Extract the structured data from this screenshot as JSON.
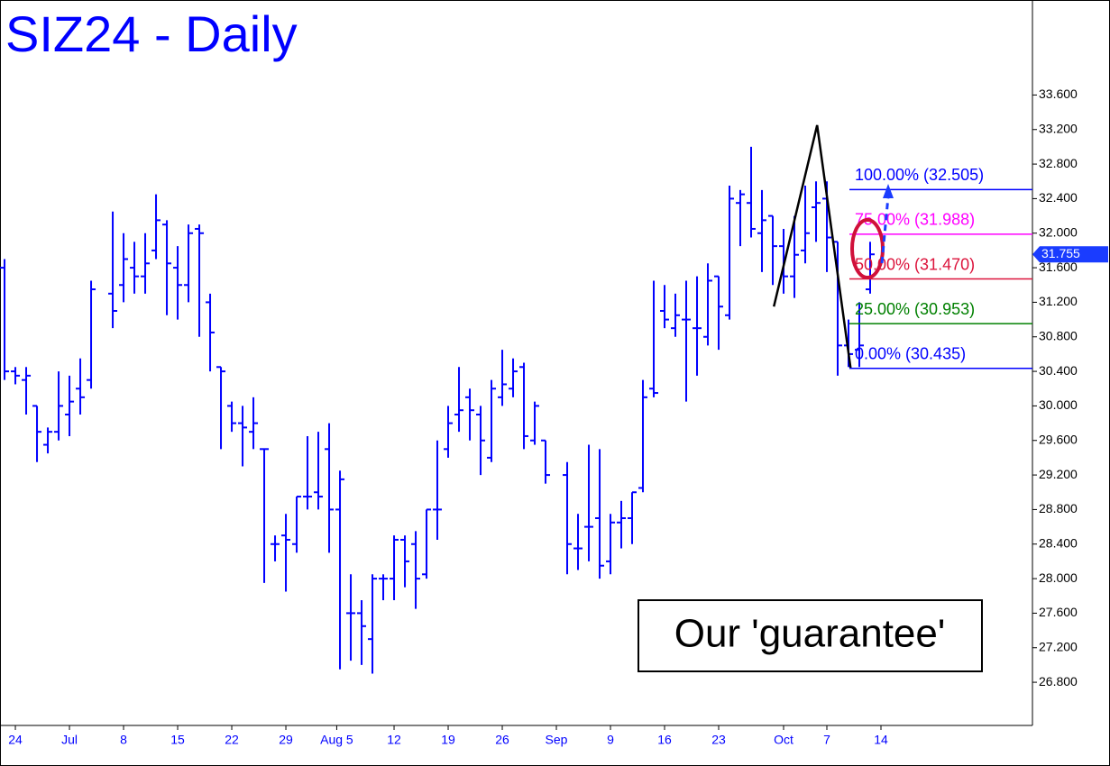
{
  "chart_data": {
    "type": "ohlc",
    "title": "SIZ24 - Daily",
    "color": "#0000ff",
    "x": [
      -1,
      0,
      1,
      2,
      3,
      4,
      5,
      6,
      7,
      9,
      10,
      11,
      12,
      13,
      14,
      15,
      16,
      17,
      18,
      19,
      20,
      21,
      22,
      23,
      24,
      25,
      26,
      27,
      28,
      29,
      30,
      31,
      32,
      33,
      34,
      35,
      36,
      37,
      38,
      39,
      40,
      41,
      42,
      43,
      44,
      45,
      46,
      47,
      48,
      49,
      51,
      52,
      53,
      54,
      55,
      56,
      57,
      58,
      59,
      60,
      61,
      62,
      63,
      64,
      65,
      66,
      67,
      68,
      69,
      70,
      71,
      72,
      73,
      74,
      75,
      76,
      77,
      78,
      79
    ],
    "open": [
      31.6,
      30.4,
      30.3,
      30.0,
      29.55,
      29.7,
      29.9,
      30.2,
      30.3,
      31.3,
      31.4,
      31.6,
      31.5,
      31.8,
      32.1,
      31.6,
      31.4,
      32.05,
      31.2,
      30.45,
      30.0,
      29.8,
      29.7,
      29.5,
      28.4,
      28.5,
      28.4,
      28.95,
      29.0,
      29.5,
      28.8,
      27.6,
      27.6,
      27.3,
      28.0,
      28.0,
      28.45,
      28.4,
      28.05,
      28.8,
      29.5,
      29.9,
      30.1,
      29.9,
      29.4,
      30.1,
      30.2,
      30.45,
      29.6,
      29.6,
      29.2,
      28.35,
      28.6,
      28.7,
      28.2,
      28.65,
      28.7,
      29.05,
      30.2,
      31.1,
      30.9,
      31.0,
      30.9,
      30.8,
      31.5,
      31.05,
      32.35,
      32.35,
      32.0,
      32.2,
      31.85,
      31.5,
      31.8,
      32.3,
      32.4,
      31.9,
      30.7,
      30.65,
      31.35
    ],
    "high": [
      31.7,
      30.45,
      30.45,
      30.0,
      29.75,
      30.4,
      30.35,
      30.55,
      31.45,
      32.25,
      32.0,
      31.9,
      32.0,
      32.45,
      32.15,
      31.85,
      32.1,
      32.1,
      31.3,
      30.45,
      30.05,
      30.0,
      30.1,
      29.5,
      28.5,
      28.75,
      28.95,
      29.65,
      29.7,
      29.8,
      29.25,
      28.05,
      27.75,
      28.05,
      28.05,
      28.5,
      28.5,
      28.55,
      28.8,
      29.6,
      30.0,
      30.45,
      30.2,
      30.0,
      30.3,
      30.65,
      30.55,
      30.5,
      30.05,
      29.6,
      29.35,
      28.75,
      29.55,
      29.5,
      28.75,
      28.9,
      29.0,
      30.3,
      31.45,
      31.4,
      31.3,
      31.45,
      31.5,
      31.65,
      31.5,
      32.55,
      32.5,
      33.0,
      32.5,
      32.2,
      32.05,
      32.2,
      32.55,
      32.6,
      32.6,
      31.9,
      31.0,
      31.2,
      31.9
    ],
    "low": [
      30.3,
      30.25,
      29.9,
      29.35,
      29.45,
      29.6,
      29.65,
      29.9,
      30.2,
      30.9,
      31.2,
      31.3,
      31.3,
      31.7,
      31.05,
      31.0,
      31.2,
      30.8,
      30.4,
      29.5,
      29.7,
      29.3,
      29.5,
      27.95,
      28.2,
      27.85,
      28.3,
      28.8,
      28.8,
      28.3,
      26.95,
      27.05,
      27.0,
      26.9,
      27.75,
      27.75,
      27.9,
      27.65,
      28.0,
      28.45,
      29.4,
      29.7,
      29.6,
      29.2,
      29.35,
      30.0,
      30.1,
      29.5,
      29.55,
      29.1,
      28.05,
      28.1,
      28.2,
      28.0,
      28.05,
      28.35,
      28.4,
      29.0,
      30.1,
      30.9,
      30.8,
      30.05,
      30.35,
      30.7,
      30.65,
      31.0,
      31.85,
      31.95,
      31.55,
      31.4,
      31.3,
      31.25,
      31.65,
      31.9,
      31.55,
      30.35,
      30.45,
      30.45,
      31.3
    ],
    "close": [
      30.4,
      30.35,
      30.35,
      29.7,
      29.7,
      30.0,
      30.05,
      30.1,
      31.35,
      31.1,
      31.7,
      31.5,
      31.65,
      32.15,
      31.65,
      31.4,
      32.0,
      32.0,
      30.85,
      30.4,
      29.8,
      29.75,
      29.8,
      29.5,
      28.4,
      28.45,
      28.95,
      28.95,
      28.95,
      28.8,
      29.15,
      27.6,
      27.45,
      28.0,
      28.0,
      28.45,
      28.2,
      28.0,
      28.8,
      28.8,
      29.8,
      29.95,
      29.95,
      29.6,
      30.2,
      30.25,
      30.4,
      29.65,
      30.0,
      29.2,
      28.4,
      28.35,
      28.6,
      28.15,
      28.65,
      28.7,
      29.0,
      30.1,
      30.15,
      31.0,
      31.05,
      31.0,
      30.9,
      31.45,
      31.15,
      32.4,
      32.45,
      32.05,
      32.15,
      31.85,
      31.5,
      31.75,
      32.0,
      32.35,
      31.95,
      30.7,
      30.6,
      30.7,
      31.755
    ],
    "xlim": [
      -1.42,
      94
    ],
    "xticks": [
      {
        "value": 0,
        "label": "24"
      },
      {
        "value": 5,
        "label": "Jul"
      },
      {
        "value": 10,
        "label": "8"
      },
      {
        "value": 15,
        "label": "15"
      },
      {
        "value": 20,
        "label": "22"
      },
      {
        "value": 25,
        "label": "29"
      },
      {
        "value": 29.7,
        "label": "Aug 5"
      },
      {
        "value": 35,
        "label": "12"
      },
      {
        "value": 40,
        "label": "19"
      },
      {
        "value": 45,
        "label": "26"
      },
      {
        "value": 50,
        "label": "Sep"
      },
      {
        "value": 55,
        "label": "9"
      },
      {
        "value": 60,
        "label": "16"
      },
      {
        "value": 65,
        "label": "23"
      },
      {
        "value": 71,
        "label": "Oct"
      },
      {
        "value": 75,
        "label": "7"
      },
      {
        "value": 80,
        "label": "14"
      }
    ],
    "ylim": [
      26.3,
      34.7
    ],
    "yticks": [
      {
        "value": 26.8,
        "label": "26.800"
      },
      {
        "value": 27.2,
        "label": "27.200"
      },
      {
        "value": 27.6,
        "label": "27.600"
      },
      {
        "value": 28.0,
        "label": "28.000"
      },
      {
        "value": 28.4,
        "label": "28.400"
      },
      {
        "value": 28.8,
        "label": "28.800"
      },
      {
        "value": 29.2,
        "label": "29.200"
      },
      {
        "value": 29.6,
        "label": "29.600"
      },
      {
        "value": 30.0,
        "label": "30.000"
      },
      {
        "value": 30.4,
        "label": "30.400"
      },
      {
        "value": 30.8,
        "label": "30.800"
      },
      {
        "value": 31.2,
        "label": "31.200"
      },
      {
        "value": 31.6,
        "label": "31.600"
      },
      {
        "value": 32.0,
        "label": "32.000"
      },
      {
        "value": 32.4,
        "label": "32.400"
      },
      {
        "value": 32.8,
        "label": "32.800"
      },
      {
        "value": 33.2,
        "label": "33.200"
      },
      {
        "value": 33.6,
        "label": "33.600"
      }
    ],
    "last_price": 31.755,
    "levels": [
      {
        "label": "100.00% (32.505)",
        "value": 32.505,
        "color": "#0000ff"
      },
      {
        "label": "75.00% (31.988)",
        "value": 31.988,
        "color": "#ff00ff"
      },
      {
        "label": "50.00% (31.470)",
        "value": 31.47,
        "color": "#dc143c"
      },
      {
        "label": "25.00% (30.953)",
        "value": 30.953,
        "color": "#008000"
      },
      {
        "label": "0.00% (30.435)",
        "value": 30.435,
        "color": "#0000ff"
      }
    ],
    "pattern": {
      "x": [
        70.1,
        74.1,
        77.2
      ],
      "values": [
        31.15,
        33.25,
        30.43
      ],
      "color": "#000000"
    },
    "annotation": "Our 'guarantee'"
  }
}
